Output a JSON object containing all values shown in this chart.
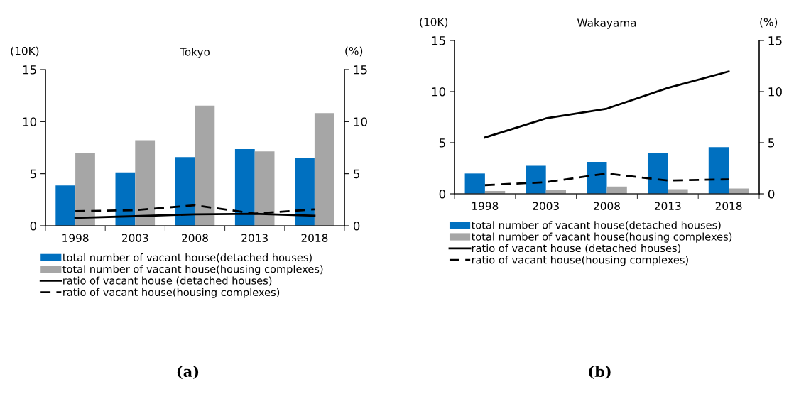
{
  "chart_data": [
    {
      "type": "bar",
      "title": "Tokyo",
      "ylabel": "(10K)",
      "y2label": "(%)",
      "categories": [
        "1998",
        "2003",
        "2008",
        "2013",
        "2018"
      ],
      "series": [
        {
          "name": "total number of vacant house(detached houses)",
          "color": "#0070c0",
          "values": [
            3.87,
            5.13,
            6.6,
            7.37,
            6.55
          ]
        },
        {
          "name": "total number of vacant house(housing complexes)",
          "color": "#a6a6a6",
          "values": [
            6.96,
            8.22,
            11.54,
            7.14,
            10.83
          ]
        },
        {
          "name": "ratio of vacant house (detached houses)",
          "type": "line",
          "axis": "y2",
          "color": "#000000",
          "line_style": "solid",
          "values": [
            0.76,
            0.92,
            1.1,
            1.15,
            0.96
          ]
        },
        {
          "name": "ratio of vacant house(housing complexes)",
          "type": "line",
          "axis": "y2",
          "color": "#000000",
          "line_style": "dashed",
          "values": [
            1.4,
            1.5,
            1.97,
            1.17,
            1.58
          ]
        }
      ],
      "ylim": [
        0,
        15
      ],
      "yticks": [
        0,
        5,
        10,
        15
      ],
      "y2lim": [
        0,
        15
      ],
      "y2ticks": [
        0,
        5,
        10,
        15
      ],
      "legend": "bottom",
      "annotations": [
        "(a)"
      ]
    },
    {
      "type": "bar",
      "title": "Wakayama",
      "ylabel": "(10K)",
      "y2label": "(%)",
      "categories": [
        "1998",
        "2003",
        "2008",
        "2013",
        "2018"
      ],
      "series": [
        {
          "name": "total number of vacant house(detached houses)",
          "color": "#0070c0",
          "values": [
            1.99,
            2.74,
            3.12,
            4.0,
            4.57
          ]
        },
        {
          "name": "total number of vacant house(housing complexes)",
          "color": "#a6a6a6",
          "values": [
            0.28,
            0.38,
            0.71,
            0.45,
            0.52
          ]
        },
        {
          "name": "ratio of vacant house (detached houses)",
          "type": "line",
          "axis": "y2",
          "color": "#000000",
          "line_style": "solid",
          "values": [
            5.51,
            7.38,
            8.33,
            10.36,
            11.97
          ]
        },
        {
          "name": "ratio of vacant house(housing complexes)",
          "type": "line",
          "axis": "y2",
          "color": "#000000",
          "line_style": "dashed",
          "values": [
            0.85,
            1.14,
            1.99,
            1.3,
            1.42
          ]
        }
      ],
      "ylim": [
        0,
        15
      ],
      "yticks": [
        0,
        5,
        10,
        15
      ],
      "y2lim": [
        0,
        15
      ],
      "y2ticks": [
        0,
        5,
        10,
        15
      ],
      "legend": "bottom",
      "annotations": [
        "(b)"
      ]
    }
  ]
}
